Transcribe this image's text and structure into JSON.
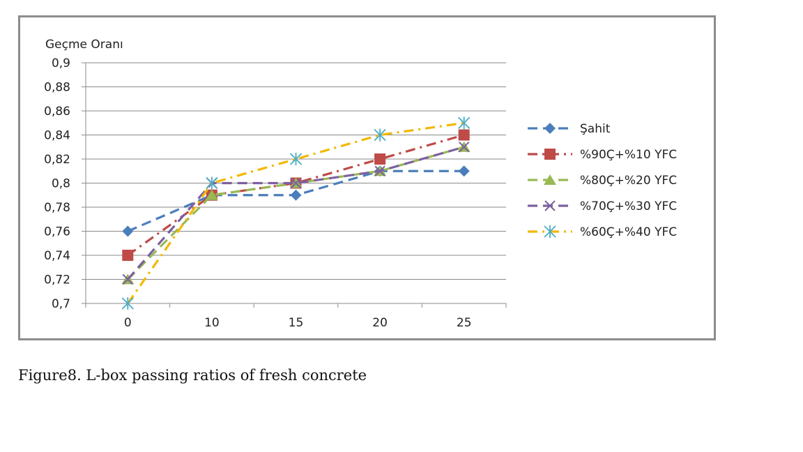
{
  "caption": "Figure8. L-box passing ratios of fresh concrete",
  "chart_data": {
    "type": "line",
    "ylabel": "Geçme Oranı",
    "categories": [
      "0",
      "10",
      "15",
      "20",
      "25"
    ],
    "ylim": [
      0.7,
      0.9
    ],
    "ytick_step": 0.02,
    "yticks": [
      "0,7",
      "0,72",
      "0,74",
      "0,76",
      "0,78",
      "0,8",
      "0,82",
      "0,84",
      "0,86",
      "0,88",
      "0,9"
    ],
    "grid": true,
    "legend_position": "right",
    "series": [
      {
        "name": "Şahit",
        "values": [
          0.76,
          0.79,
          0.79,
          0.81,
          0.81
        ],
        "color": "#4a7ebb",
        "marker": "diamond",
        "dash": "dashed"
      },
      {
        "name": "%90Ç+%10 YFC",
        "values": [
          0.74,
          0.79,
          0.8,
          0.82,
          0.84
        ],
        "color": "#be4b48",
        "marker": "square",
        "dash": "dashdot"
      },
      {
        "name": "%80Ç+%20 YFC",
        "values": [
          0.72,
          0.79,
          0.8,
          0.81,
          0.83
        ],
        "color": "#98b954",
        "marker": "triangle",
        "dash": "dashed"
      },
      {
        "name": "%70Ç+%30 YFC",
        "values": [
          0.72,
          0.8,
          0.8,
          0.81,
          0.83
        ],
        "color": "#7d60a0",
        "marker": "x",
        "dash": "dashed"
      },
      {
        "name": "%60Ç+%40 YFC",
        "values": [
          0.7,
          0.8,
          0.82,
          0.84,
          0.85
        ],
        "color": "#f2b800",
        "marker": "star",
        "dash": "dashdot"
      }
    ]
  }
}
